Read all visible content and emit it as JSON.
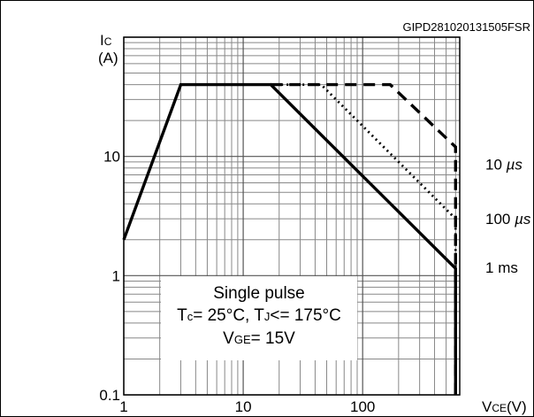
{
  "figure_code": "GIPD281020131505FSR",
  "chart_data": {
    "type": "line",
    "xscale": "log",
    "yscale": "log",
    "xlim": [
      1,
      650
    ],
    "ylim": [
      0.1,
      100
    ],
    "ylabel": "IC",
    "ylabel_unit": "(A)",
    "xlabel": "VCE(V)",
    "x_ticks": [
      "1",
      "10",
      "100"
    ],
    "y_ticks": [
      "0.1",
      "1",
      "10"
    ],
    "grid": true,
    "series": [
      {
        "name": "1 ms",
        "style": "solid",
        "points": [
          [
            1,
            2.0
          ],
          [
            3,
            40
          ],
          [
            17,
            40
          ],
          [
            600,
            1.15
          ],
          [
            600,
            0.1
          ]
        ]
      },
      {
        "name": "100 µs",
        "style": "dotted",
        "points": [
          [
            17,
            40
          ],
          [
            45,
            40
          ],
          [
            600,
            3.0
          ],
          [
            600,
            0.1
          ]
        ]
      },
      {
        "name": "10 µs",
        "style": "dashed",
        "points": [
          [
            17,
            40
          ],
          [
            170,
            40
          ],
          [
            600,
            12
          ],
          [
            600,
            0.1
          ]
        ]
      }
    ],
    "annotation": [
      "Single pulse",
      "Tc= 25°C, TJ<= 175°C",
      "VGE= 15V"
    ]
  }
}
